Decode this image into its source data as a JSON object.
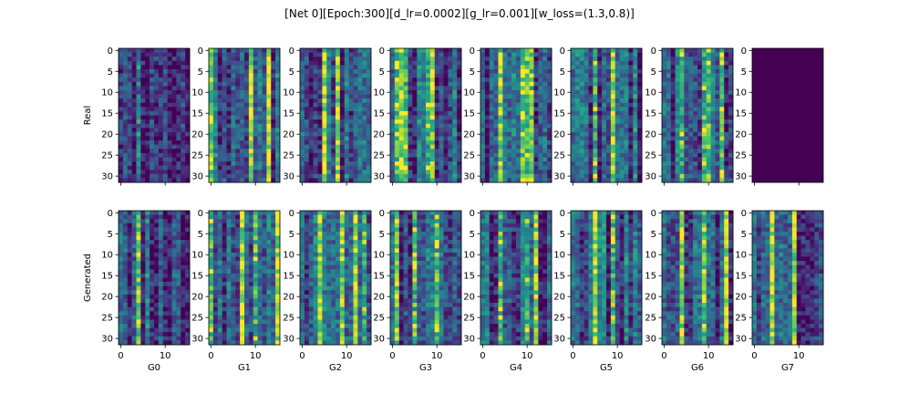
{
  "chart_data": {
    "type": "heatmap",
    "title": "[Net 0][Epoch:300][d_lr=0.0002][g_lr=0.001][w_loss=(1.3,0.8)]",
    "colormap": "viridis",
    "rows": [
      {
        "label": "Real"
      },
      {
        "label": "Generated"
      }
    ],
    "columns": [
      "G0",
      "G1",
      "G2",
      "G3",
      "G4",
      "G5",
      "G6",
      "G7"
    ],
    "cell_shape": [
      32,
      16
    ],
    "x_ticks": [
      0,
      10
    ],
    "y_ticks": [
      0,
      5,
      10,
      15,
      20,
      25,
      30
    ],
    "value_range": [
      0,
      1
    ],
    "constant_panels": [
      {
        "row": 0,
        "col": 7,
        "value": 0
      }
    ],
    "bright_columns": {
      "0": [
        [
          4
        ],
        [
          0,
          9,
          13
        ],
        [
          5,
          8
        ],
        [
          1,
          2,
          3,
          8,
          9
        ],
        [
          4,
          9,
          10,
          11
        ],
        [
          5,
          9
        ],
        [
          4,
          9,
          10,
          13
        ],
        null
      ],
      "1": [
        [
          4
        ],
        [
          0,
          7,
          10,
          15
        ],
        [
          4,
          9,
          12,
          14
        ],
        [
          1,
          5,
          10
        ],
        [
          4,
          10,
          12
        ],
        [
          5,
          9
        ],
        [
          4,
          9,
          14
        ],
        [
          4,
          9
        ]
      ]
    }
  }
}
